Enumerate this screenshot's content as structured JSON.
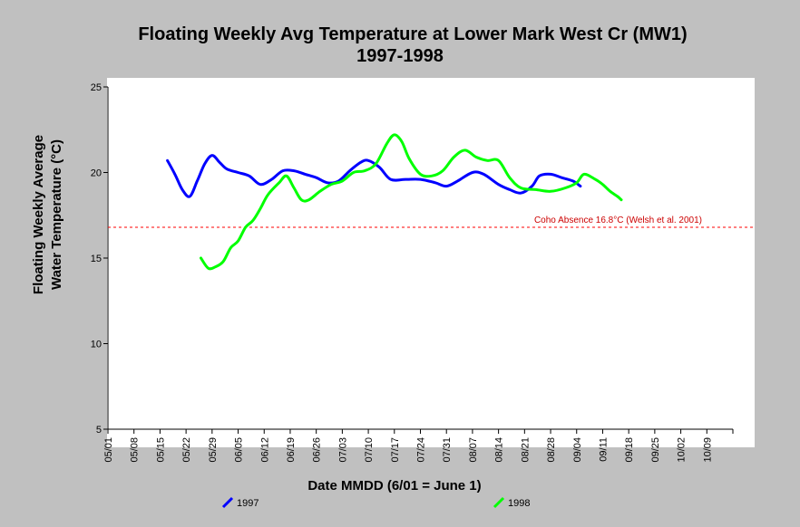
{
  "chart_data": {
    "type": "line",
    "title": "Floating Weekly Avg Temperature at Lower Mark West Cr (MW1)",
    "subtitle": "1997-1998",
    "xlabel": "Date MMDD (6/01 = June 1)",
    "ylabel_line1": "Floating Weekly Average",
    "ylabel_line2": "Water Temperature (°C)",
    "xlim": [
      "05/01",
      "10/16"
    ],
    "ylim": [
      5,
      25
    ],
    "y_ticks": [
      5,
      10,
      15,
      20,
      25
    ],
    "x_ticks": [
      "05/01",
      "05/08",
      "05/15",
      "05/22",
      "05/29",
      "06/05",
      "06/12",
      "06/19",
      "06/26",
      "07/03",
      "07/10",
      "07/17",
      "07/24",
      "07/31",
      "08/07",
      "08/14",
      "08/21",
      "08/28",
      "09/04",
      "09/11",
      "09/18",
      "09/25",
      "10/02",
      "10/09"
    ],
    "grid": false,
    "legend_position": "bottom",
    "threshold": {
      "label": "Coho Absence 16.8°C (Welsh et al. 2001)",
      "value": 16.8,
      "color": "#ff0000"
    },
    "series": [
      {
        "name": "1997",
        "color": "#0000ff",
        "x": [
          "05/17",
          "05/19",
          "05/21",
          "05/23",
          "05/25",
          "05/27",
          "05/29",
          "05/31",
          "06/02",
          "06/05",
          "06/08",
          "06/11",
          "06/14",
          "06/17",
          "06/20",
          "06/23",
          "06/26",
          "06/29",
          "07/02",
          "07/05",
          "07/08",
          "07/10",
          "07/13",
          "07/16",
          "07/20",
          "07/24",
          "07/28",
          "07/31",
          "08/03",
          "08/07",
          "08/10",
          "08/14",
          "08/17",
          "08/20",
          "08/23",
          "08/25",
          "08/28",
          "08/31",
          "09/03",
          "09/05"
        ],
        "y": [
          20.7,
          19.9,
          19.0,
          18.6,
          19.5,
          20.5,
          21.0,
          20.6,
          20.2,
          20.0,
          19.8,
          19.3,
          19.6,
          20.1,
          20.1,
          19.9,
          19.7,
          19.4,
          19.5,
          20.1,
          20.6,
          20.7,
          20.3,
          19.6,
          19.6,
          19.6,
          19.4,
          19.2,
          19.5,
          20.0,
          19.9,
          19.3,
          19.0,
          18.8,
          19.2,
          19.8,
          19.9,
          19.7,
          19.5,
          19.2
        ]
      },
      {
        "name": "1998",
        "color": "#00ff00",
        "x": [
          "05/26",
          "05/28",
          "05/30",
          "06/01",
          "06/03",
          "06/05",
          "06/07",
          "06/09",
          "06/11",
          "06/13",
          "06/16",
          "06/18",
          "06/20",
          "06/22",
          "06/24",
          "06/27",
          "06/30",
          "07/03",
          "07/06",
          "07/09",
          "07/12",
          "07/15",
          "07/17",
          "07/19",
          "07/21",
          "07/24",
          "07/27",
          "07/30",
          "08/02",
          "08/05",
          "08/08",
          "08/11",
          "08/14",
          "08/17",
          "08/20",
          "08/24",
          "08/28",
          "09/01",
          "09/04",
          "09/06",
          "09/09",
          "09/11",
          "09/13",
          "09/15",
          "09/16"
        ],
        "y": [
          15.0,
          14.4,
          14.5,
          14.8,
          15.6,
          16.0,
          16.8,
          17.2,
          17.9,
          18.7,
          19.4,
          19.8,
          19.1,
          18.4,
          18.4,
          18.9,
          19.3,
          19.5,
          20.0,
          20.1,
          20.5,
          21.7,
          22.2,
          21.8,
          20.8,
          19.9,
          19.8,
          20.1,
          20.9,
          21.3,
          20.9,
          20.7,
          20.7,
          19.7,
          19.1,
          19.0,
          18.9,
          19.1,
          19.4,
          19.9,
          19.6,
          19.3,
          18.9,
          18.6,
          18.4
        ]
      }
    ]
  }
}
